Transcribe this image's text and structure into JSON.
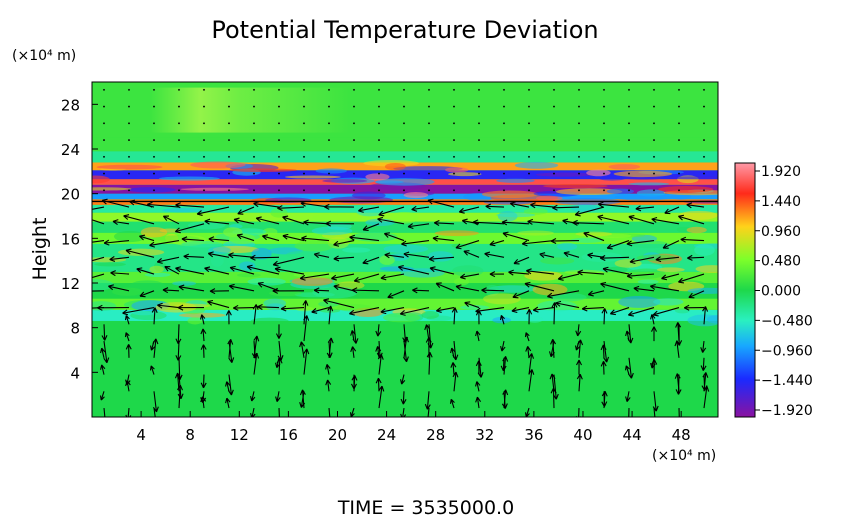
{
  "chart_data": {
    "type": "heatmap",
    "title": "Potential Temperature Deviation",
    "xlabel": "",
    "ylabel": "Height",
    "x_unit": "(×10⁴ m)",
    "y_unit": "(×10⁴ m)",
    "x_ticks": [
      4,
      8,
      12,
      16,
      20,
      24,
      28,
      32,
      36,
      40,
      44,
      48
    ],
    "y_ticks": [
      4,
      8,
      12,
      16,
      20,
      24,
      28
    ],
    "xlim": [
      0,
      51
    ],
    "ylim": [
      0,
      30
    ],
    "colorbar": {
      "ticks": [
        "1.920",
        "1.440",
        "0.960",
        "0.480",
        "0.000",
        "−0.480",
        "−0.960",
        "−1.440",
        "−1.920"
      ],
      "range": [
        -1.92,
        1.92
      ]
    },
    "bands": [
      {
        "y0": 0,
        "y1": 8.6,
        "value": 0.0
      },
      {
        "y0": 8.6,
        "y1": 9.6,
        "value": -0.5
      },
      {
        "y0": 9.6,
        "y1": 10.6,
        "value": 0.35
      },
      {
        "y0": 10.6,
        "y1": 12.0,
        "value": 0.0
      },
      {
        "y0": 12.0,
        "y1": 13.0,
        "value": 0.3
      },
      {
        "y0": 13.0,
        "y1": 15.5,
        "value": -0.25
      },
      {
        "y0": 15.5,
        "y1": 16.5,
        "value": 0.4
      },
      {
        "y0": 16.5,
        "y1": 17.5,
        "value": -0.15
      },
      {
        "y0": 17.5,
        "y1": 18.3,
        "value": 0.55
      },
      {
        "y0": 18.3,
        "y1": 19.0,
        "value": -0.35
      },
      {
        "y0": 19.0,
        "y1": 19.5,
        "value": 1.2
      },
      {
        "y0": 19.5,
        "y1": 20.0,
        "value": -1.0
      },
      {
        "y0": 20.0,
        "y1": 20.8,
        "value": -1.9
      },
      {
        "y0": 20.8,
        "y1": 21.3,
        "value": 1.6
      },
      {
        "y0": 21.3,
        "y1": 22.1,
        "value": -1.5
      },
      {
        "y0": 22.1,
        "y1": 22.8,
        "value": 1.1
      },
      {
        "y0": 22.8,
        "y1": 23.8,
        "value": -0.3
      },
      {
        "y0": 23.8,
        "y1": 25.0,
        "value": 0.15
      },
      {
        "y0": 25.0,
        "y1": 30.0,
        "value": 0.15
      }
    ],
    "grid": false,
    "legend": "colorbar-right"
  },
  "footer": {
    "time_label": "TIME = 3535000.0"
  }
}
